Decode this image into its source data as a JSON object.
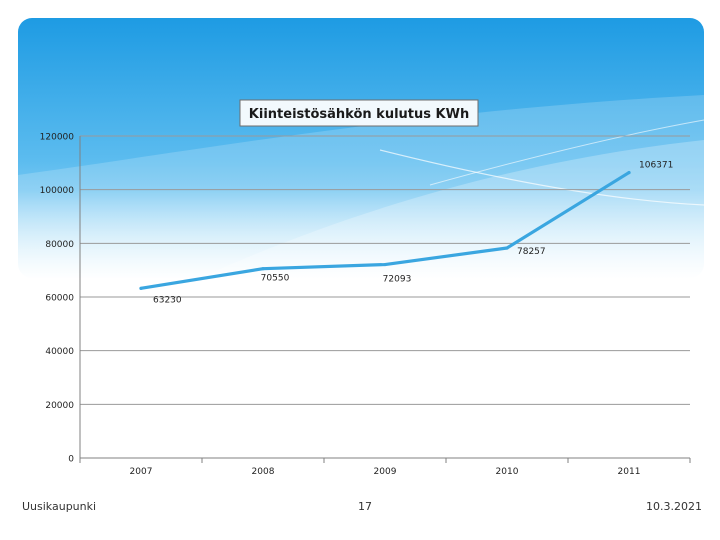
{
  "colors": {
    "banner_top": "#27a4e6",
    "banner_bottom": "#8fd2f4",
    "line": "#3aa6e0",
    "axis": "#808080",
    "title_border": "#6d6d6d"
  },
  "footer": {
    "left": "Uusikaupunki",
    "center": "17",
    "right": "10.3.2021"
  },
  "chart_data": {
    "type": "line",
    "title": "Kiinteistösähkön kulutus KWh",
    "xlabel": "",
    "ylabel": "",
    "categories": [
      "2007",
      "2008",
      "2009",
      "2010",
      "2011"
    ],
    "series": [
      {
        "values": [
          63230,
          70550,
          72093,
          78257,
          106371
        ]
      }
    ],
    "data_labels": [
      "63230",
      "70550",
      "72093",
      "78257",
      "106371"
    ],
    "y_ticks": [
      "0",
      "20000",
      "40000",
      "60000",
      "80000",
      "100000",
      "120000"
    ],
    "ylim": [
      0,
      120000
    ],
    "grid": true,
    "legend": "none"
  }
}
